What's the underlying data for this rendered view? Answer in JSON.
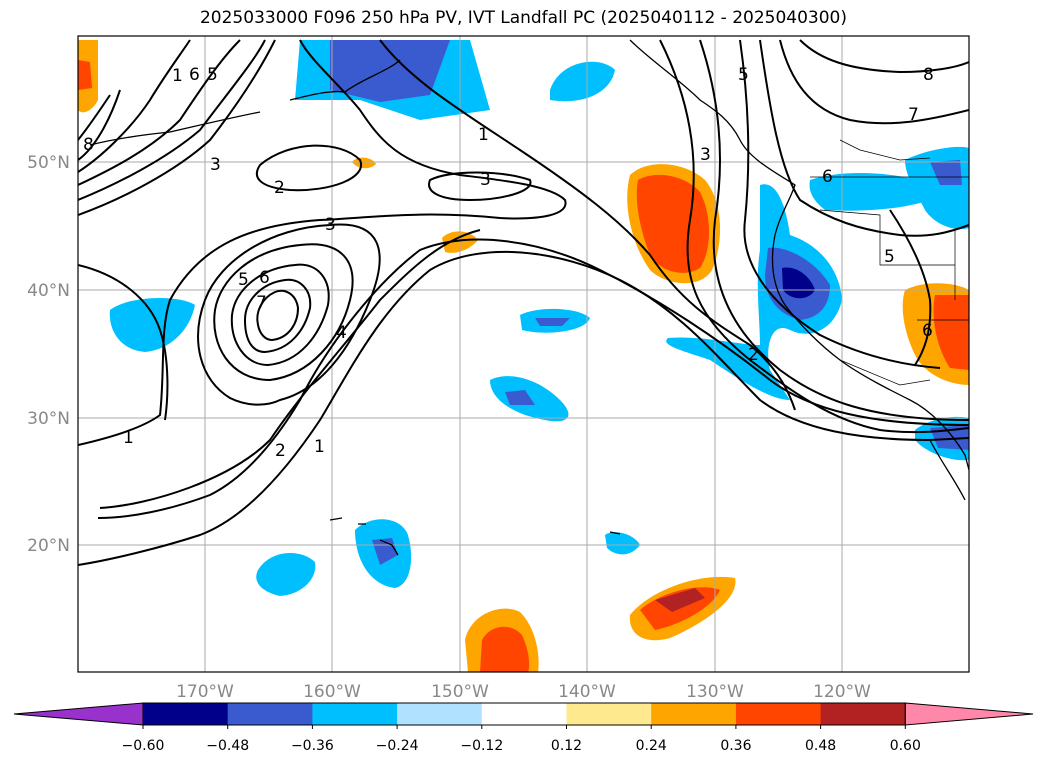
{
  "title": "2025033000 F096 250 hPa PV, IVT Landfall PC (2025040112 - 2025040300)",
  "map": {
    "lat_labels": [
      "50°N",
      "40°N",
      "30°N",
      "20°N"
    ],
    "lon_labels": [
      "170°W",
      "160°W",
      "150°W",
      "140°W",
      "130°W",
      "120°W"
    ],
    "contour_labels": [
      "1",
      "2",
      "3",
      "4",
      "5",
      "6",
      "7",
      "8"
    ]
  },
  "colorbar": {
    "ticks": [
      "−0.60",
      "−0.48",
      "−0.36",
      "−0.24",
      "−0.12",
      "0.12",
      "0.24",
      "0.36",
      "0.48",
      "0.60"
    ],
    "colors": [
      "#9932cc",
      "#00008b",
      "#3a5bcf",
      "#00bfff",
      "#b0e2ff",
      "#ffffff",
      "#ffe98f",
      "#ffa500",
      "#ff4500",
      "#b22222",
      "#ff88aa"
    ]
  },
  "colors": {
    "grid": "#aaaaaa",
    "axis_label": "#888888"
  }
}
